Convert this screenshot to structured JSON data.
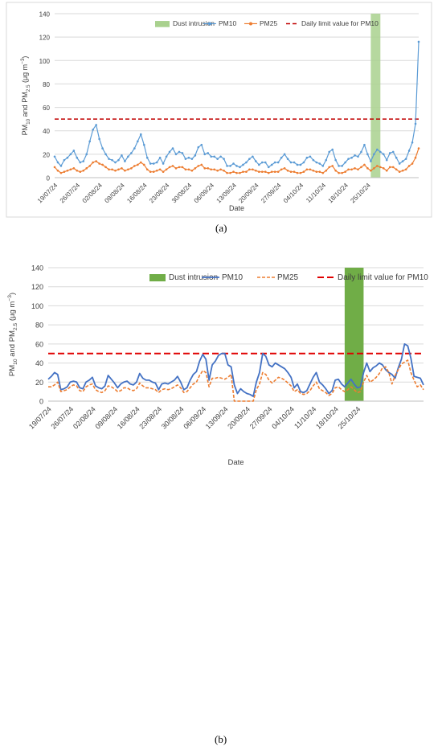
{
  "panel_labels": [
    "(a)",
    "(b)"
  ],
  "chart_data": [
    {
      "type": "line",
      "panel": "(a)",
      "xlabel": "Date",
      "ylabel_parts": [
        "PM",
        "10",
        " and PM",
        "2.5",
        " (μg m",
        "−3",
        ")"
      ],
      "ylim": [
        0,
        140
      ],
      "yticks": [
        0,
        20,
        40,
        60,
        80,
        100,
        120,
        140
      ],
      "xtick_labels": [
        "19/07/24",
        "26/07/24",
        "02/08/24",
        "09/08/24",
        "16/08/24",
        "23/08/24",
        "30/08/24",
        "06/09/24",
        "13/09/24",
        "20/09/24",
        "27/09/24",
        "04/10/24",
        "11/10/24",
        "18/10/24",
        "25/10/24"
      ],
      "grid": true,
      "legend_position": "top",
      "legend": [
        "Dust intrusion",
        "PM10",
        "PM25",
        "Daily limit value for PM10"
      ],
      "limit_value": 50,
      "dust_intrusion": {
        "start_day": 99,
        "end_day": 102
      },
      "colors": {
        "dust": "#a9d18e",
        "pm10": "#5b9bd5",
        "pm25": "#ed7d31",
        "limit": "#c00000"
      },
      "series": [
        {
          "name": "PM10",
          "start_day": 0,
          "values": [
            18,
            13,
            10,
            15,
            17,
            20,
            23,
            17,
            13,
            14,
            20,
            31,
            41,
            45,
            33,
            25,
            20,
            16,
            15,
            13,
            15,
            19,
            14,
            18,
            21,
            25,
            31,
            37,
            28,
            17,
            12,
            12,
            13,
            17,
            12,
            18,
            22,
            25,
            20,
            22,
            21,
            16,
            17,
            16,
            19,
            26,
            28,
            20,
            21,
            18,
            18,
            16,
            18,
            16,
            10,
            10,
            12,
            10,
            9,
            11,
            13,
            16,
            18,
            14,
            11,
            13,
            13,
            9,
            11,
            13,
            13,
            17,
            20,
            16,
            13,
            13,
            11,
            11,
            13,
            17,
            18,
            15,
            13,
            12,
            10,
            15,
            22,
            24,
            15,
            10,
            10,
            13,
            16,
            17,
            19,
            18,
            22,
            28,
            20,
            14,
            20,
            24,
            22,
            20,
            15,
            21,
            22,
            17,
            12,
            14,
            16,
            23,
            30,
            46,
            116
          ]
        },
        {
          "name": "PM25",
          "start_day": 0,
          "values": [
            9,
            6,
            4,
            5,
            6,
            7,
            8,
            6,
            5,
            6,
            8,
            10,
            13,
            14,
            12,
            11,
            9,
            7,
            7,
            6,
            7,
            8,
            6,
            7,
            8,
            10,
            11,
            13,
            11,
            7,
            5,
            5,
            6,
            7,
            5,
            7,
            9,
            10,
            8,
            9,
            9,
            7,
            7,
            6,
            8,
            10,
            11,
            8,
            8,
            7,
            7,
            6,
            7,
            6,
            4,
            4,
            5,
            4,
            4,
            5,
            5,
            7,
            7,
            6,
            5,
            5,
            5,
            4,
            5,
            5,
            5,
            7,
            8,
            6,
            5,
            5,
            4,
            4,
            5,
            7,
            7,
            6,
            5,
            5,
            4,
            6,
            9,
            10,
            6,
            4,
            4,
            5,
            7,
            7,
            8,
            7,
            9,
            11,
            8,
            6,
            8,
            10,
            9,
            8,
            6,
            9,
            9,
            7,
            5,
            6,
            7,
            10,
            12,
            17,
            25
          ]
        }
      ]
    },
    {
      "type": "line",
      "panel": "(b)",
      "xlabel": "Date",
      "ylabel_parts": [
        "PM",
        "10",
        " and PM",
        "2.5",
        " (μg m",
        "−3",
        ")"
      ],
      "ylim": [
        0,
        140
      ],
      "yticks": [
        0,
        20,
        40,
        60,
        80,
        100,
        120,
        140
      ],
      "xtick_labels": [
        "19/07/24",
        "26/07/24",
        "02/08/24",
        "09/08/24",
        "16/08/24",
        "23/08/24",
        "30/08/24",
        "06/09/24",
        "13/09/24",
        "20/09/24",
        "27/09/24",
        "04/10/24",
        "11/10/24",
        "18/10/24",
        "25/10/24"
      ],
      "grid": true,
      "legend_position": "top",
      "legend": [
        "Dust intrusion",
        "PM10",
        "PM25",
        "Daily limit value for PM10"
      ],
      "limit_value": 50,
      "dust_intrusion": {
        "start_day": 94,
        "end_day": 100
      },
      "colors": {
        "dust": "#70ad47",
        "pm10": "#4472c4",
        "pm25": "#ed7d31",
        "limit": "#e00000"
      },
      "series": [
        {
          "name": "PM10",
          "start_day": 0,
          "values": [
            23,
            26,
            30,
            28,
            12,
            13,
            15,
            20,
            21,
            20,
            14,
            13,
            20,
            22,
            25,
            16,
            14,
            13,
            16,
            27,
            23,
            19,
            14,
            18,
            20,
            21,
            18,
            17,
            20,
            29,
            24,
            22,
            22,
            20,
            19,
            12,
            18,
            19,
            18,
            20,
            22,
            26,
            20,
            12,
            14,
            22,
            28,
            31,
            42,
            49,
            44,
            22,
            38,
            42,
            48,
            50,
            50,
            38,
            36,
            17,
            8,
            13,
            10,
            8,
            7,
            5,
            20,
            30,
            50,
            47,
            38,
            36,
            40,
            38,
            36,
            34,
            30,
            25,
            14,
            18,
            10,
            9,
            11,
            18,
            25,
            30,
            20,
            17,
            13,
            8,
            11,
            22,
            23,
            18,
            15,
            19,
            23,
            18,
            14,
            15,
            30,
            40,
            31,
            35,
            37,
            40,
            38,
            33,
            30,
            28,
            24,
            35,
            44,
            60,
            58,
            45,
            26,
            25,
            24,
            17
          ]
        },
        {
          "name": "PM25",
          "start_day": 0,
          "values": [
            15,
            15,
            17,
            20,
            10,
            11,
            12,
            15,
            17,
            16,
            11,
            10,
            15,
            17,
            18,
            12,
            10,
            9,
            11,
            16,
            15,
            13,
            10,
            11,
            14,
            14,
            12,
            11,
            13,
            19,
            16,
            14,
            14,
            13,
            12,
            9,
            12,
            13,
            12,
            13,
            15,
            17,
            14,
            9,
            10,
            14,
            18,
            20,
            27,
            32,
            30,
            15,
            24,
            24,
            25,
            24,
            23,
            25,
            28,
            0,
            0,
            0,
            0,
            0,
            0,
            0,
            12,
            18,
            30,
            28,
            22,
            19,
            22,
            25,
            24,
            22,
            19,
            16,
            10,
            12,
            8,
            7,
            8,
            11,
            16,
            20,
            13,
            11,
            9,
            6,
            8,
            14,
            15,
            12,
            10,
            12,
            15,
            12,
            9,
            10,
            20,
            27,
            20,
            22,
            25,
            29,
            35,
            36,
            30,
            18,
            27,
            33,
            39,
            41,
            43,
            30,
            22,
            15,
            17,
            12
          ]
        }
      ]
    }
  ]
}
